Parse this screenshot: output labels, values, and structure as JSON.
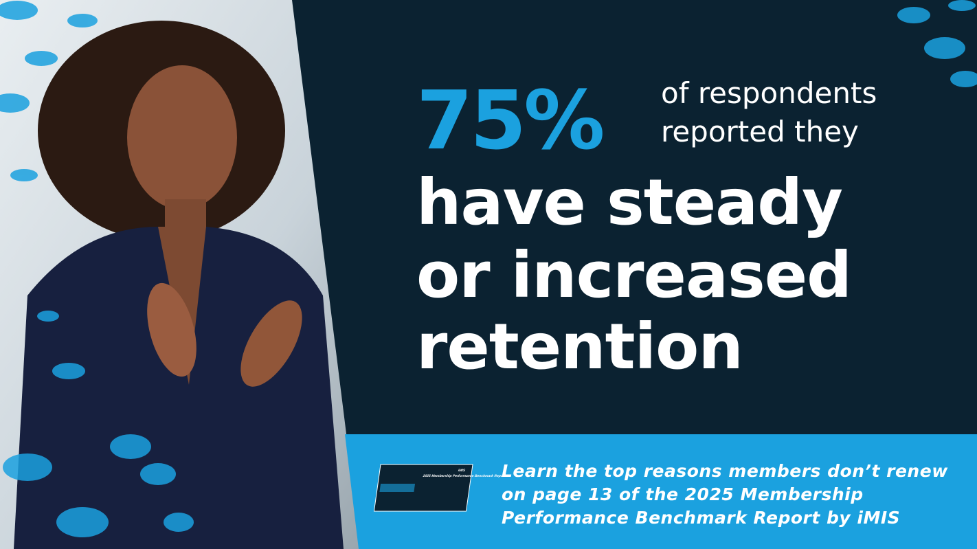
{
  "headline": {
    "stat": "75%",
    "intro_lines": [
      "of respondents",
      "reported they"
    ],
    "main_lines": [
      "have steady",
      "or increased",
      "retention"
    ]
  },
  "footer": {
    "lines": [
      "Learn the top reasons members don’t renew",
      "on page 13 of the 2025 Membership",
      "Performance Benchmark Report by iMIS"
    ]
  },
  "book": {
    "title": "2025 Membership Performance Benchmark Report",
    "brand": "iMIS"
  }
}
